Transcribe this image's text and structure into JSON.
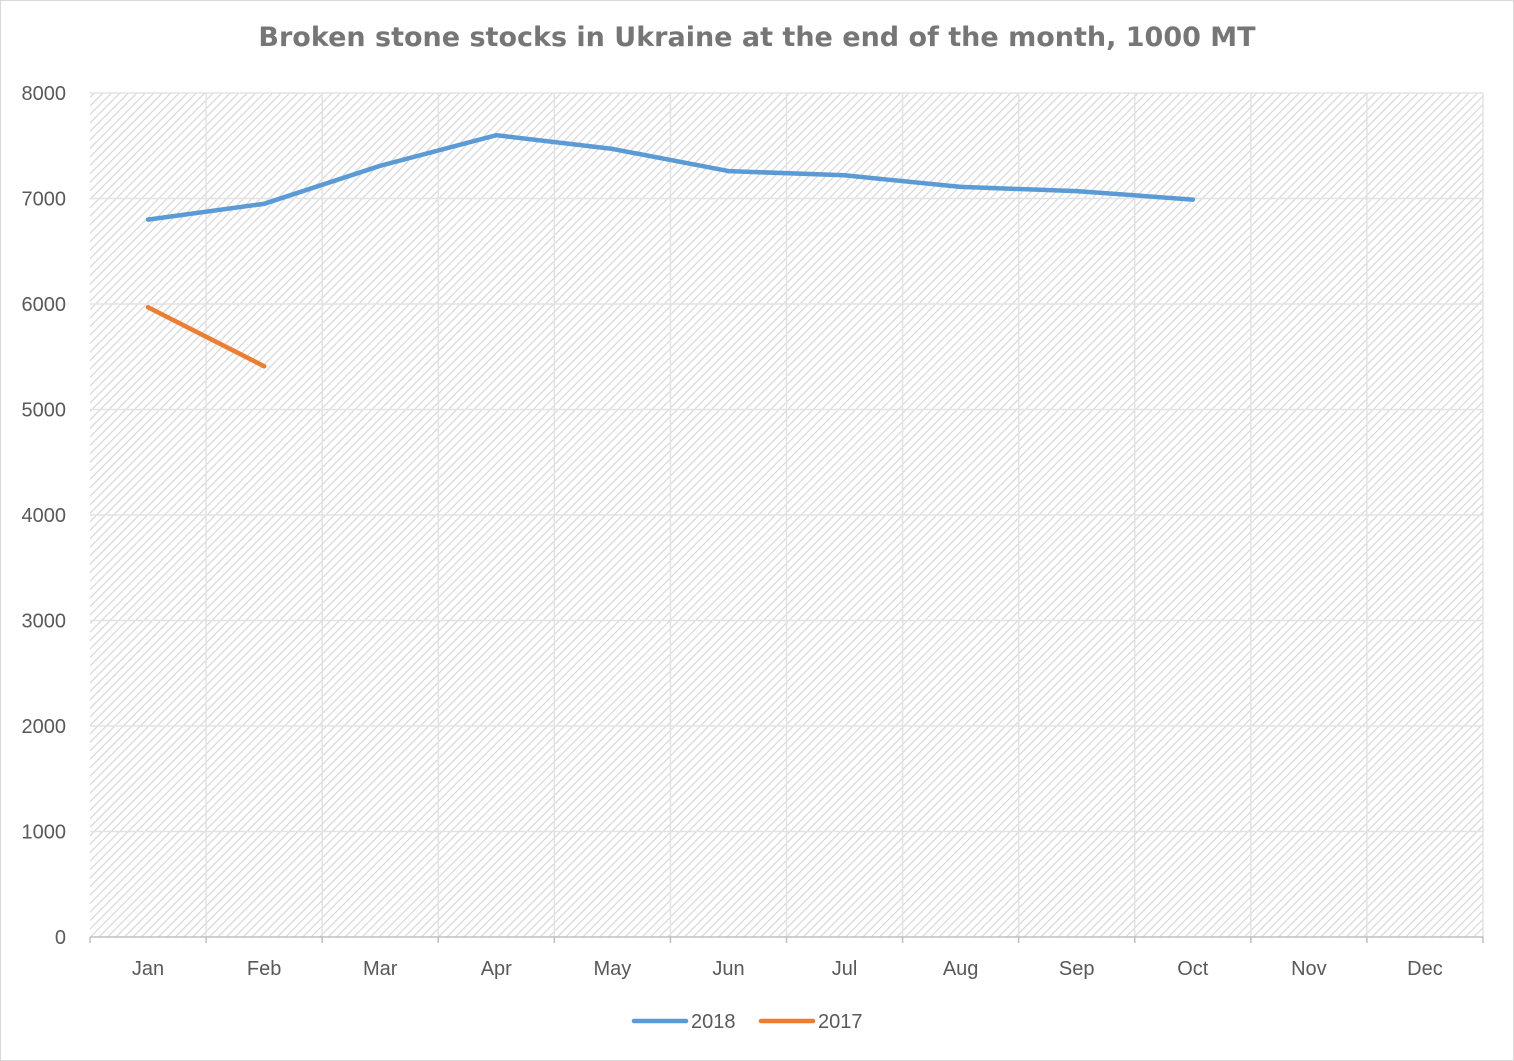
{
  "chart_data": {
    "type": "line",
    "title": "Broken stone stocks in Ukraine at the end of the month, 1000 MT",
    "xlabel": "",
    "ylabel": "",
    "categories": [
      "Jan",
      "Feb",
      "Mar",
      "Apr",
      "May",
      "Jun",
      "Jul",
      "Aug",
      "Sep",
      "Oct",
      "Nov",
      "Dec"
    ],
    "ylim": [
      0,
      8000
    ],
    "yticks": [
      "0",
      "1000",
      "2000",
      "3000",
      "4000",
      "5000",
      "6000",
      "7000",
      "8000"
    ],
    "grid": true,
    "legend_position": "bottom",
    "series": [
      {
        "name": "2018",
        "color": "#5b9bd5",
        "values": [
          6800,
          6950,
          7310,
          7600,
          7470,
          7260,
          7220,
          7110,
          7070,
          6990,
          null,
          null
        ]
      },
      {
        "name": "2017",
        "color": "#ed7d31",
        "values": [
          5970,
          5410,
          null,
          null,
          null,
          null,
          null,
          null,
          null,
          null,
          null,
          null
        ]
      }
    ]
  }
}
